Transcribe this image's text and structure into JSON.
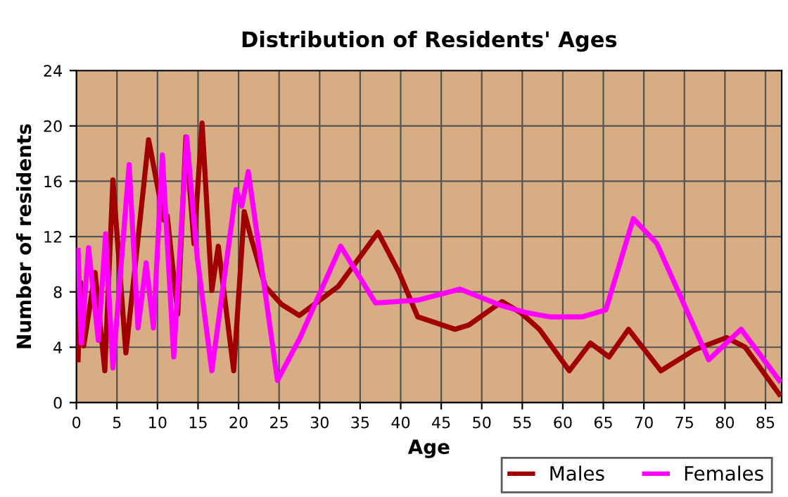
{
  "chart_data": {
    "type": "line",
    "title": "Distribution of Residents' Ages",
    "xlabel": "Age",
    "ylabel": "Number of residents",
    "xlim": [
      0,
      87
    ],
    "ylim": [
      0,
      24
    ],
    "xticks": [
      0,
      5,
      10,
      15,
      20,
      25,
      30,
      35,
      40,
      45,
      50,
      55,
      60,
      65,
      70,
      75,
      80,
      85
    ],
    "yticks": [
      0,
      4,
      8,
      12,
      16,
      20,
      24
    ],
    "grid": true,
    "legend": "bottom right",
    "line_style": "solid",
    "series": [
      {
        "name": "Males",
        "color": "#a00000",
        "x": [
          0.2,
          0.5,
          0.9,
          2.3,
          3.5,
          4.5,
          6.1,
          8.9,
          10.8,
          11.2,
          12.5,
          13.5,
          14.5,
          15.5,
          16.7,
          17.5,
          19.4,
          20.7,
          21.5,
          23.3,
          25.3,
          27.5,
          32.3,
          37.2,
          39.8,
          42.1,
          46.7,
          48.4,
          52.5,
          54.8,
          57.1,
          60.8,
          63.4,
          65.7,
          68.1,
          72.1,
          76.2,
          80.2,
          82.5,
          86.7
        ],
        "values": [
          3.1,
          8.7,
          4.1,
          9.4,
          2.3,
          16.1,
          3.6,
          19,
          13.2,
          13.5,
          6.4,
          19.2,
          11.5,
          20.2,
          8.1,
          11.3,
          2.3,
          13.8,
          12,
          8.4,
          7.1,
          6.3,
          8.4,
          12.3,
          9.4,
          6.2,
          5.3,
          5.6,
          7.3,
          6.5,
          5.3,
          2.3,
          4.3,
          3.3,
          5.3,
          2.3,
          3.8,
          4.7,
          4.0,
          0.6
        ]
      },
      {
        "name": "Females",
        "color": "#ff00ff",
        "x": [
          0.2,
          0.6,
          1.5,
          2.7,
          3.6,
          4.5,
          6.5,
          7.6,
          8.6,
          9.5,
          10.6,
          12,
          13.6,
          14.9,
          16.7,
          19.7,
          20.4,
          21.2,
          24.8,
          27.6,
          32.6,
          36.9,
          42.1,
          47.3,
          52.5,
          55.5,
          58.4,
          62.4,
          65.3,
          68.7,
          71.6,
          78,
          82,
          86.7
        ],
        "values": [
          11,
          4.3,
          11.2,
          4.5,
          12.2,
          2.5,
          17.2,
          5.4,
          10.1,
          5.4,
          17.9,
          3.3,
          19.2,
          10.5,
          2.3,
          15.4,
          14.2,
          16.7,
          1.6,
          4.7,
          11.3,
          7.2,
          7.4,
          8.2,
          7.0,
          6.5,
          6.2,
          6.2,
          6.7,
          13.3,
          11.5,
          3.1,
          5.3,
          1.6
        ]
      }
    ]
  }
}
